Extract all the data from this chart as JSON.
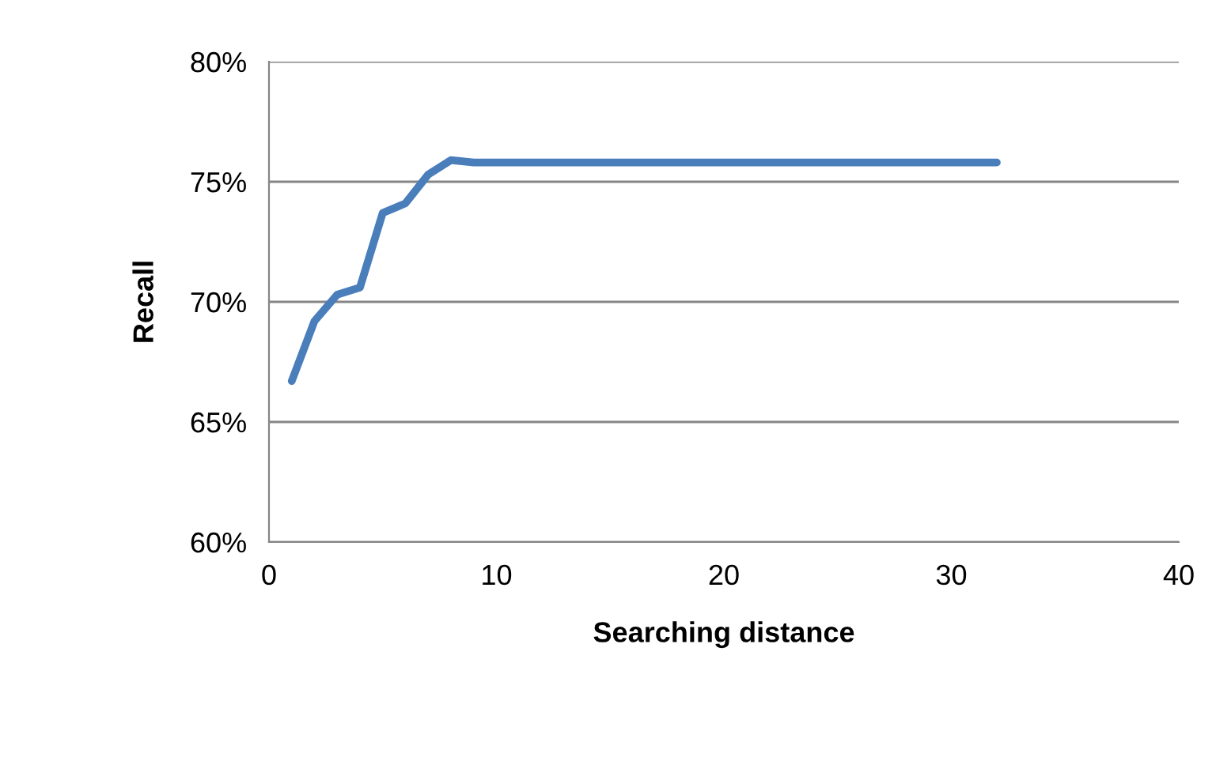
{
  "chart_data": {
    "type": "line",
    "xlabel": "Searching distance",
    "ylabel": "Recall",
    "x": [
      1,
      2,
      3,
      4,
      5,
      6,
      7,
      8,
      9,
      10,
      11,
      12,
      13,
      14,
      15,
      16,
      17,
      18,
      19,
      20,
      21,
      22,
      23,
      24,
      25,
      26,
      27,
      28,
      29,
      30,
      31,
      32
    ],
    "series": [
      {
        "color": "#4a7ebb",
        "values": [
          66.7,
          69.2,
          70.3,
          70.6,
          73.7,
          74.1,
          75.3,
          75.9,
          75.8,
          75.8,
          75.8,
          75.8,
          75.8,
          75.8,
          75.8,
          75.8,
          75.8,
          75.8,
          75.8,
          75.8,
          75.8,
          75.8,
          75.8,
          75.8,
          75.8,
          75.8,
          75.8,
          75.8,
          75.8,
          75.8,
          75.8,
          75.8
        ]
      }
    ],
    "xlim": [
      0,
      40
    ],
    "xticks": [
      0,
      10,
      20,
      30,
      40
    ],
    "ylim": [
      60,
      80
    ],
    "yticks": [
      {
        "value": 60,
        "label": "60%"
      },
      {
        "value": 65,
        "label": "65%"
      },
      {
        "value": 70,
        "label": "70%"
      },
      {
        "value": 75,
        "label": "75%"
      },
      {
        "value": 80,
        "label": "80%"
      }
    ],
    "grid": "y",
    "marker": "none",
    "line_style": "solid",
    "legend": false
  }
}
